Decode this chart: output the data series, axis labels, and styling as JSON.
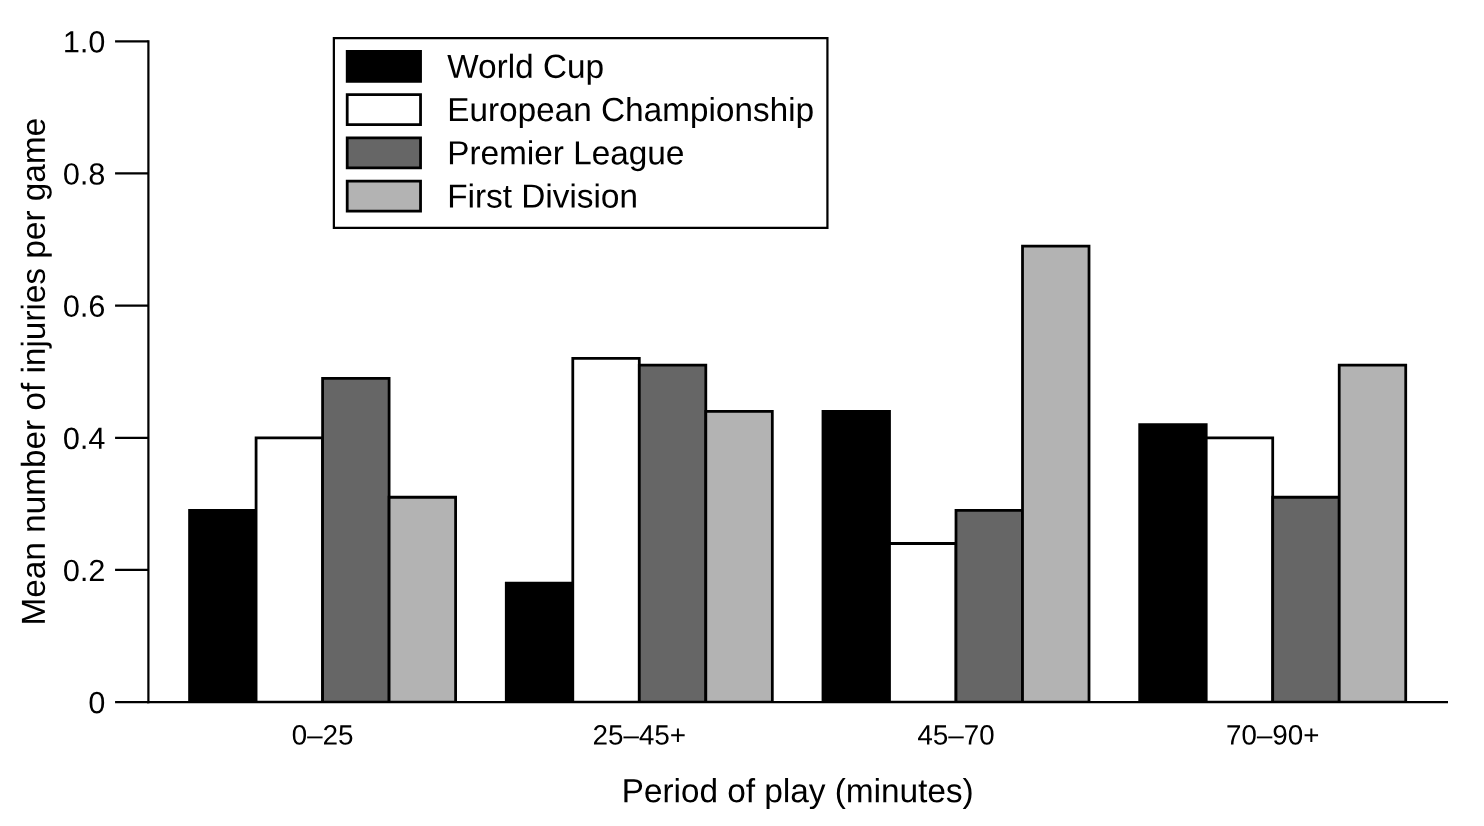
{
  "chart_data": {
    "type": "bar",
    "xlabel": "Period of play (minutes)",
    "ylabel": "Mean number of injuries per game",
    "categories": [
      "0–25",
      "25–45+",
      "45–70",
      "70–90+"
    ],
    "series": [
      {
        "name": "World Cup",
        "color": "#000000",
        "values": [
          0.29,
          0.18,
          0.44,
          0.42
        ]
      },
      {
        "name": "European Championship",
        "color": "#ffffff",
        "values": [
          0.4,
          0.52,
          0.24,
          0.4
        ]
      },
      {
        "name": "Premier League",
        "color": "#666666",
        "values": [
          0.49,
          0.51,
          0.29,
          0.31
        ]
      },
      {
        "name": "First Division",
        "color": "#b3b3b3",
        "values": [
          0.31,
          0.44,
          0.69,
          0.51
        ]
      }
    ],
    "ylim": [
      0,
      1.0
    ],
    "yticks": [
      0,
      {
        "value": 0.2,
        "label": "0.2"
      },
      {
        "value": 0.4,
        "label": "0.4"
      },
      {
        "value": 0.6,
        "label": "0.6"
      },
      {
        "value": 0.8,
        "label": "0.8"
      },
      {
        "value": 1.0,
        "label": "1.0"
      }
    ],
    "grid": false,
    "legend": "top left"
  }
}
